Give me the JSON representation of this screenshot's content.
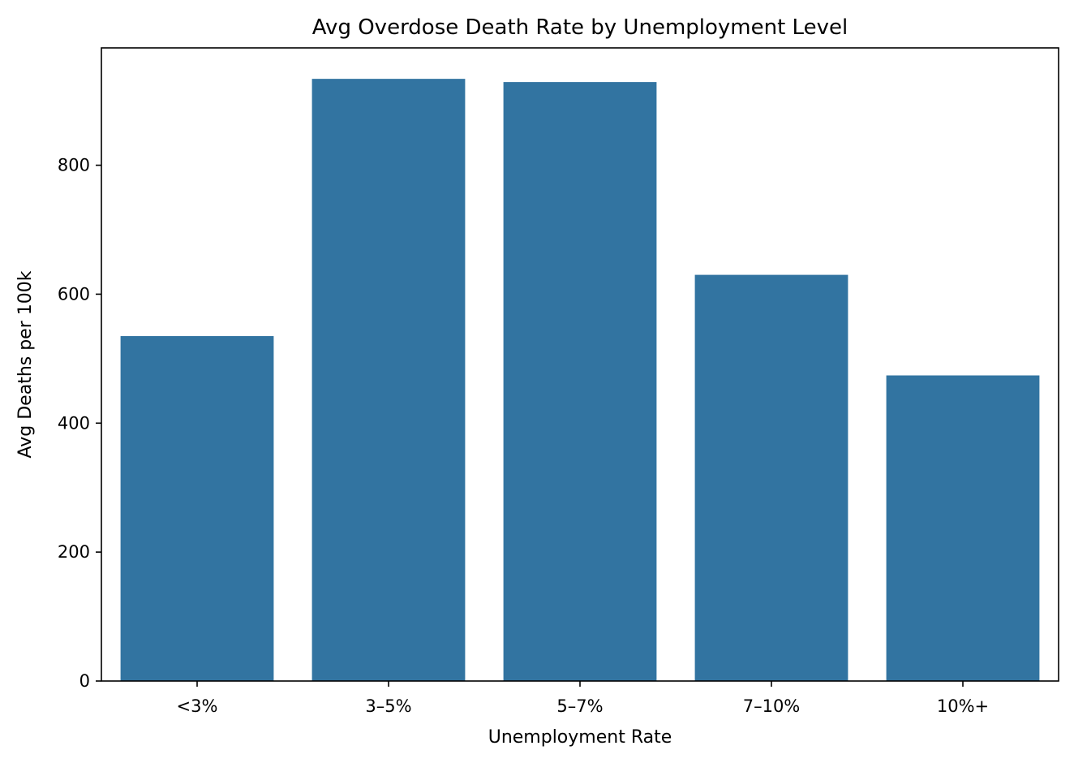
{
  "chart_data": {
    "type": "bar",
    "title": "Avg Overdose Death Rate by Unemployment Level",
    "xlabel": "Unemployment Rate",
    "ylabel": "Avg Deaths per 100k",
    "categories": [
      "<3%",
      "3–5%",
      "5–7%",
      "7–10%",
      "10%+"
    ],
    "values": [
      535,
      934,
      929,
      630,
      474
    ],
    "ylim": [
      0,
      982
    ],
    "yticks": [
      0,
      200,
      400,
      600,
      800
    ],
    "grid": false,
    "legend": "none",
    "bar_color": "#3274a1"
  }
}
